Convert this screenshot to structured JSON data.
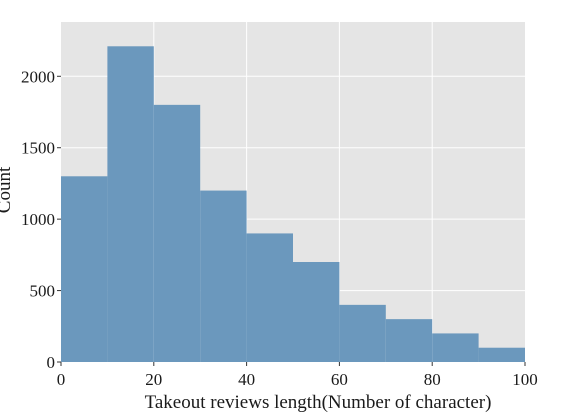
{
  "chart_data": {
    "type": "bar",
    "subtype": "histogram",
    "bin_edges": [
      0,
      10,
      20,
      30,
      40,
      50,
      60,
      70,
      80,
      90,
      100
    ],
    "values": [
      1300,
      2210,
      1800,
      1200,
      900,
      700,
      400,
      300,
      200,
      100
    ],
    "title": "",
    "xlabel": "Takeout reviews length(Number of character)",
    "ylabel": "Count",
    "xlim": [
      0,
      100
    ],
    "ylim": [
      0,
      2380
    ],
    "x_ticks": [
      0,
      20,
      40,
      60,
      80,
      100
    ],
    "y_ticks": [
      0,
      500,
      1000,
      1500,
      2000
    ],
    "grid": true,
    "legend": "none",
    "colors": {
      "bar": "#6b98bd",
      "plot_background": "#e5e5e5",
      "grid": "#ffffff"
    }
  }
}
